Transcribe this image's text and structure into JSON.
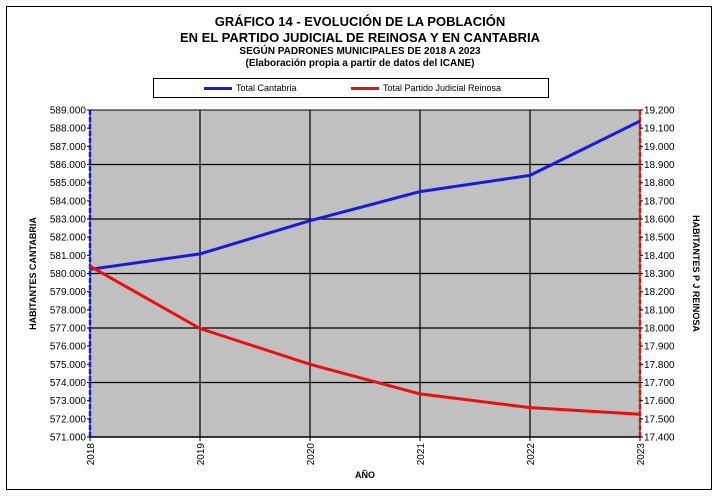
{
  "chart_data": {
    "type": "line",
    "title_line1": "GRÁFICO 14 - EVOLUCIÓN DE LA POBLACIÓN",
    "title_line2": "EN EL PARTIDO JUDICIAL DE REINOSA Y EN CANTABRIA",
    "subtitle_line1": "SEGÚN PADRONES MUNICIPALES DE 2018 A 2023",
    "subtitle_line2": "(Elaboración propia a partir de datos del ICANE)",
    "xlabel": "AÑO",
    "ylabel_left": "HABITANTES CANTABRIA",
    "ylabel_right": "HABITANTES P J REINOSA",
    "x": [
      "2018",
      "2019",
      "2020",
      "2021",
      "2022",
      "2023"
    ],
    "ylim_left": [
      571000,
      589000
    ],
    "ylim_right": [
      17400,
      19200
    ],
    "yticks_left": [
      "571.000",
      "572.000",
      "573.000",
      "574.000",
      "575.000",
      "576.000",
      "577.000",
      "578.000",
      "579.000",
      "580.000",
      "581.000",
      "582.000",
      "583.000",
      "584.000",
      "585.000",
      "586.000",
      "587.000",
      "588.000",
      "589.000"
    ],
    "yticks_right": [
      "17.400",
      "17.500",
      "17.600",
      "17.700",
      "17.800",
      "17.900",
      "18.000",
      "18.100",
      "18.200",
      "18.300",
      "18.400",
      "18.500",
      "18.600",
      "18.700",
      "18.800",
      "18.900",
      "19.000",
      "19.100",
      "19.200"
    ],
    "grid": true,
    "legend_position": "top",
    "plot_background": "#c0c0c0",
    "series": [
      {
        "name": "Total Cantabria",
        "axis": "left",
        "color": "#1a1adc",
        "values": [
          580229,
          581078,
          582905,
          584507,
          585402,
          588387
        ]
      },
      {
        "name": "Total Partido Judicial Reinosa",
        "axis": "right",
        "color": "#e81010",
        "values": [
          18340,
          17997,
          17800,
          17637,
          17562,
          17525
        ]
      }
    ]
  }
}
